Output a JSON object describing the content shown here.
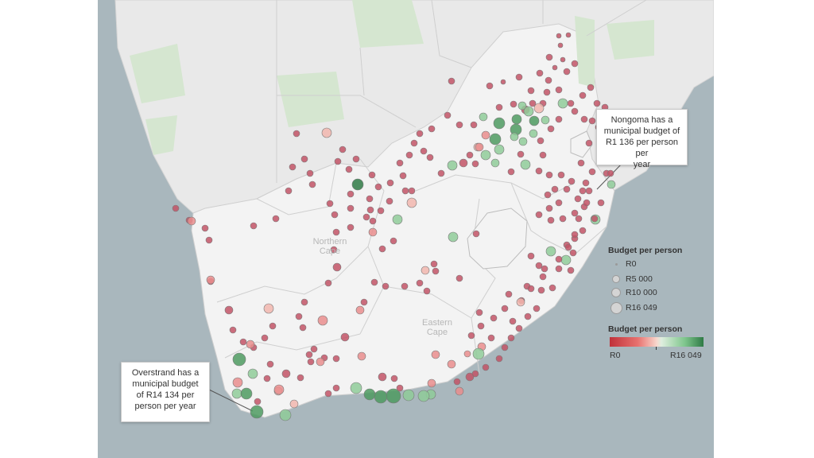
{
  "map": {
    "place_labels": [
      {
        "text": "Northern\nCape"
      },
      {
        "text": "Eastern\nCape"
      }
    ],
    "annotations": {
      "nongoma": {
        "lines": [
          "Nongoma has a",
          "municipal budget of",
          "R1 136 per person per",
          "year"
        ]
      },
      "overstrand": {
        "lines": [
          "Overstrand has a",
          "municipal budget",
          "of  R14 134 per",
          "person per year"
        ]
      }
    }
  },
  "legend": {
    "size": {
      "title": "Budget per person",
      "items": [
        {
          "label": "R0",
          "value": 0
        },
        {
          "label": "R5 000",
          "value": 5000
        },
        {
          "label": "R10 000",
          "value": 10000
        },
        {
          "label": "R16 049",
          "value": 16049
        }
      ]
    },
    "color": {
      "title": "Budget per person",
      "min_label": "R0",
      "max_label": "R16 049",
      "low_color": "#c0313a",
      "mid_color": "#f8d6cc",
      "high_color": "#2f7a45"
    }
  },
  "colors": {
    "ocean": "#a9b7bd",
    "land_context": "#e9e9e9",
    "land_sa": "#f3f3f3",
    "park": "#d5e6d0",
    "border": "#cfcfcf"
  }
}
